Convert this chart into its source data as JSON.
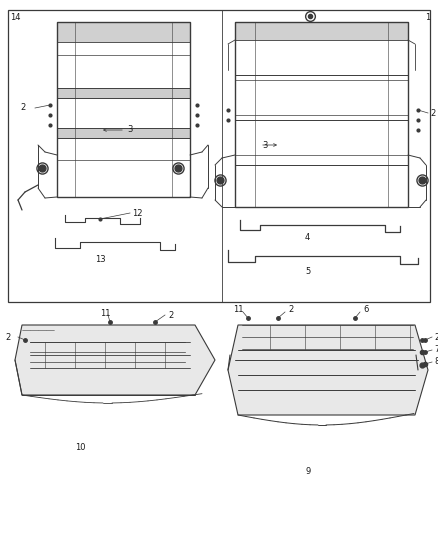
{
  "bg_color": "#ffffff",
  "line_color": "#3a3a3a",
  "text_color": "#1a1a1a",
  "fig_width": 4.38,
  "fig_height": 5.33,
  "dpi": 100,
  "font_size": 6.0
}
